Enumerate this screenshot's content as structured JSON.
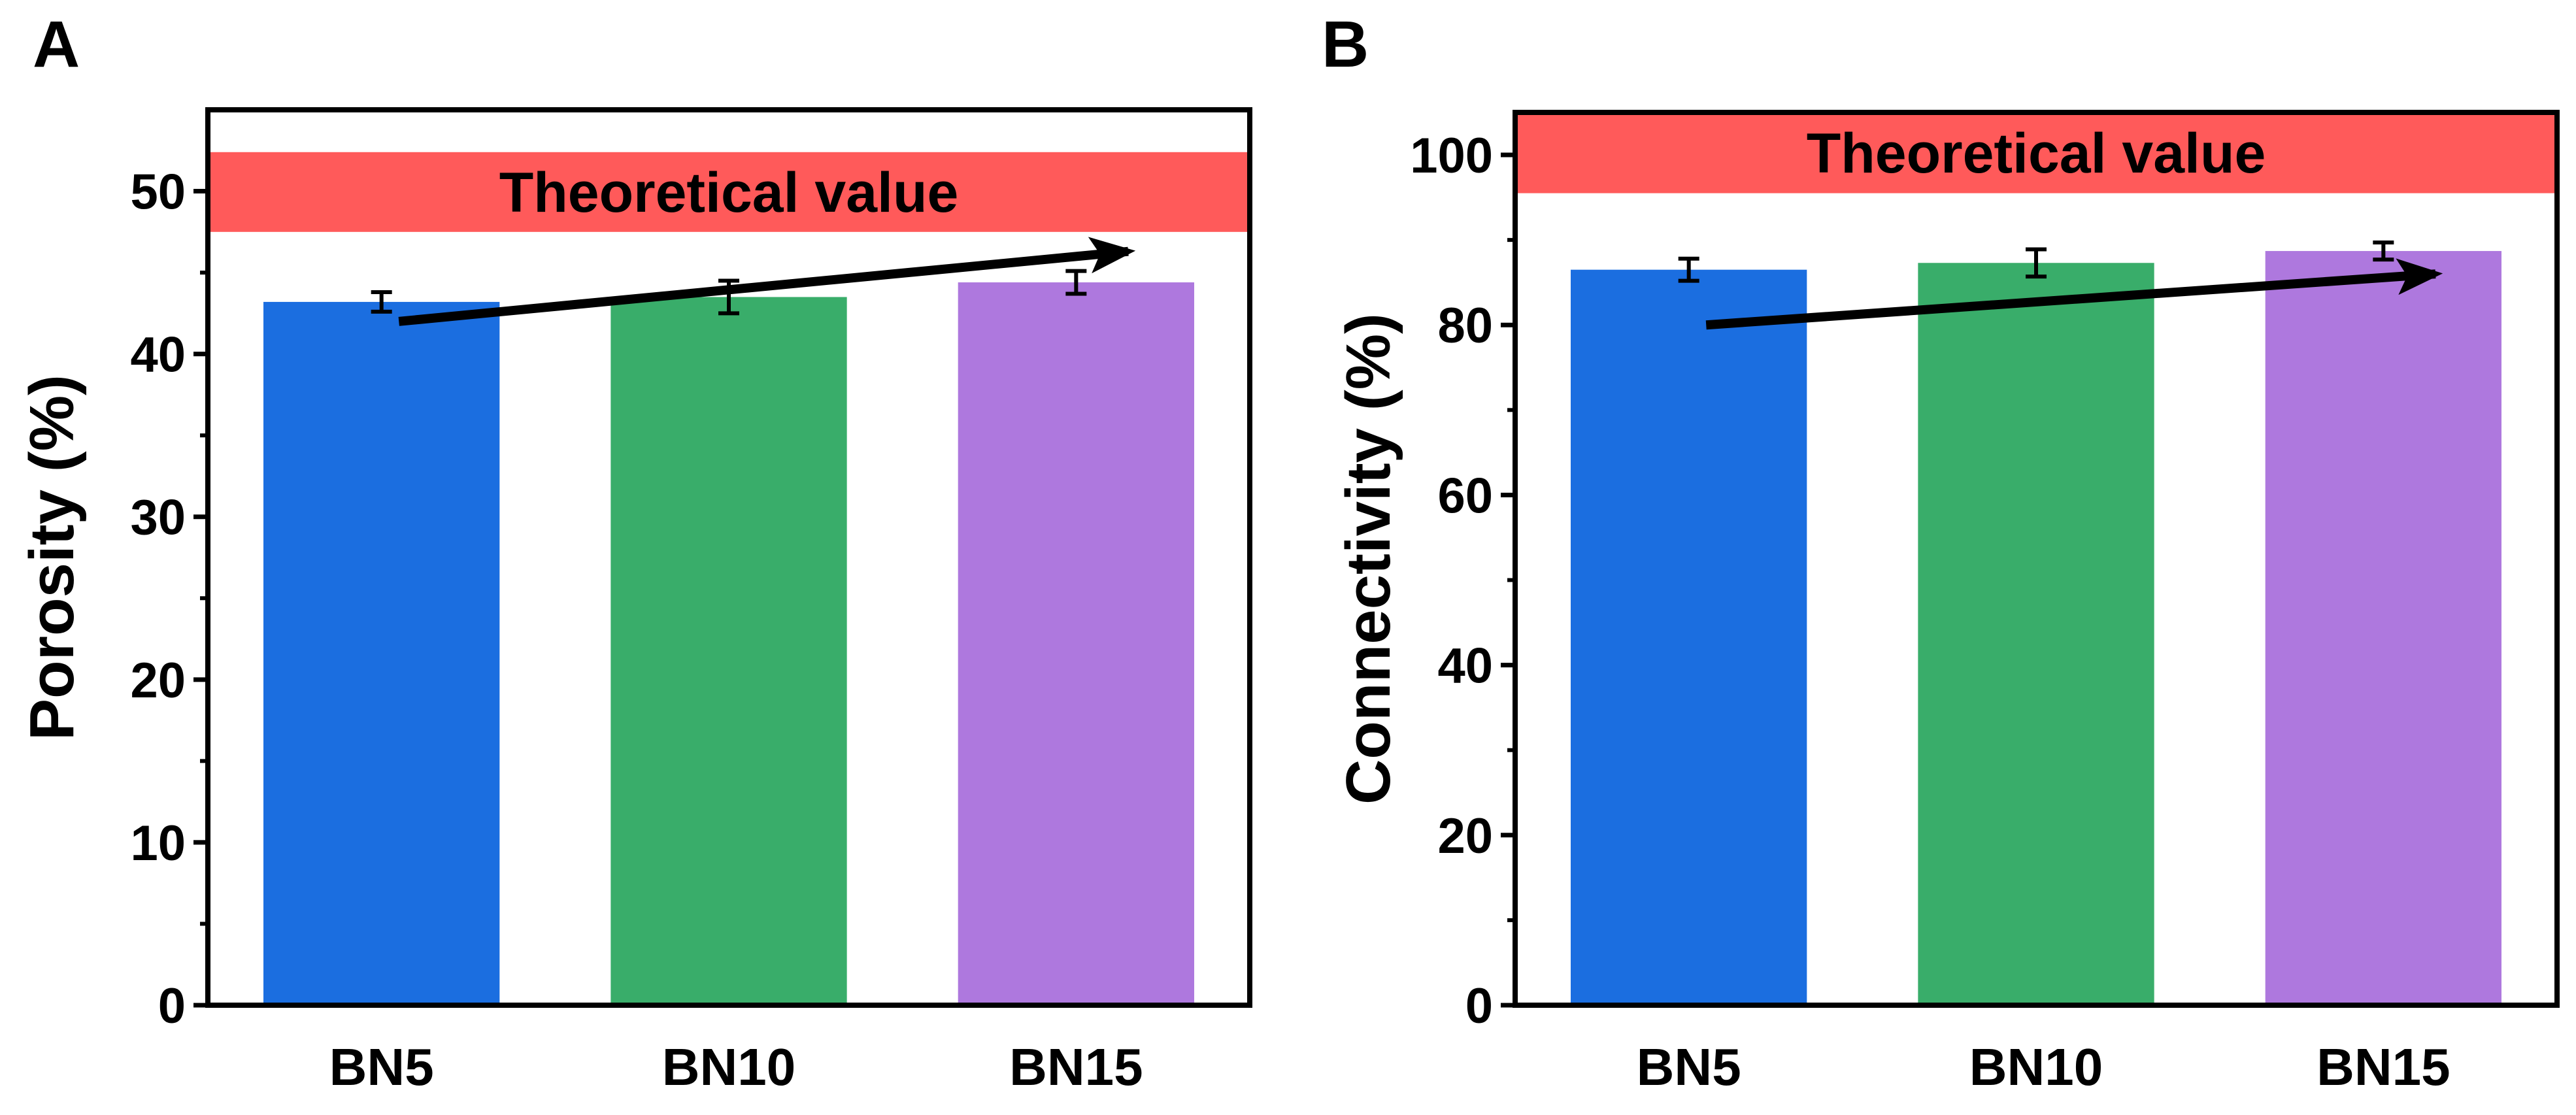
{
  "chart_data": [
    {
      "panel_label": "A",
      "type": "bar",
      "categories": [
        "BN5",
        "BN10",
        "BN15"
      ],
      "values": [
        43.2,
        43.5,
        44.4
      ],
      "errors": [
        0.6,
        1.0,
        0.7
      ],
      "colors": [
        "#1b6ee0",
        "#39ad6a",
        "#ae78de"
      ],
      "ylabel": "Porosity (%)",
      "xlabel": "",
      "ylim": [
        0,
        55
      ],
      "yticks": [
        0,
        10,
        20,
        30,
        40,
        50
      ],
      "grid": false,
      "theoretical_band": {
        "label": "Theoretical value",
        "from": 47.5,
        "to": 52.4,
        "color": "#ff5a5a"
      },
      "trend_arrow": {
        "from": [
          0.05,
          42.0
        ],
        "to": [
          2.15,
          46.3
        ]
      }
    },
    {
      "panel_label": "B",
      "type": "bar",
      "categories": [
        "BN5",
        "BN10",
        "BN15"
      ],
      "values": [
        86.5,
        87.3,
        88.7
      ],
      "errors": [
        1.3,
        1.6,
        1.0
      ],
      "colors": [
        "#1b6ee0",
        "#39ad6a",
        "#ae78de"
      ],
      "ylabel": "Connectivity (%)",
      "xlabel": "",
      "ylim": [
        0,
        105
      ],
      "yticks": [
        0,
        20,
        40,
        60,
        80,
        100
      ],
      "grid": false,
      "theoretical_band": {
        "label": "Theoretical value",
        "from": 95.5,
        "to": 105,
        "color": "#ff5a5a"
      },
      "trend_arrow": {
        "from": [
          0.05,
          80.0
        ],
        "to": [
          2.15,
          86.0
        ]
      }
    }
  ]
}
